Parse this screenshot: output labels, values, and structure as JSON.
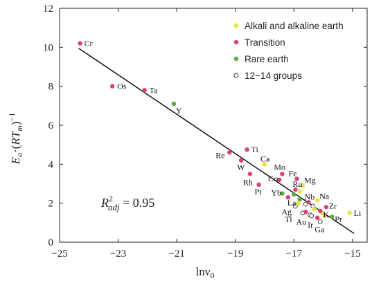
{
  "chart_data": {
    "type": "scatter",
    "xlim": [
      -25,
      -14.5
    ],
    "ylim": [
      0,
      12
    ],
    "x_ticks": [
      -25,
      -23,
      -21,
      -19,
      -17,
      -15
    ],
    "x_tick_labels": [
      "−25",
      "−23",
      "−21",
      "−19",
      "−17",
      "−15"
    ],
    "y_ticks": [
      0,
      2,
      4,
      6,
      8,
      10,
      12
    ],
    "y_tick_labels": [
      "0",
      "2",
      "4",
      "6",
      "8",
      "10",
      "12"
    ],
    "grid": false,
    "legend_position": "top-right",
    "annotation": {
      "prefix": "R",
      "sup": "2",
      "sub": "adj",
      "value": " = 0.95"
    },
    "categories": {
      "alkali": {
        "name": "Alkali and alkaline earth",
        "color": "#e8e03c"
      },
      "transition": {
        "name": "Transition",
        "color": "#d9407a"
      },
      "rare": {
        "name": "Rare earth",
        "color": "#5aa842"
      },
      "group12": {
        "name": "12−14 groups",
        "color": "#ffffff"
      }
    },
    "points": [
      {
        "label": "Cr",
        "x": -24.3,
        "y": 10.2,
        "cat": "transition"
      },
      {
        "label": "Os",
        "x": -23.2,
        "y": 8.0,
        "cat": "transition"
      },
      {
        "label": "Ta",
        "x": -22.1,
        "y": 7.8,
        "cat": "transition"
      },
      {
        "label": "Y",
        "x": -21.1,
        "y": 7.1,
        "cat": "rare"
      },
      {
        "label": "Ti",
        "x": -18.6,
        "y": 4.75,
        "cat": "transition"
      },
      {
        "label": "Re",
        "x": -19.2,
        "y": 4.6,
        "cat": "transition"
      },
      {
        "label": "W",
        "x": -18.8,
        "y": 4.2,
        "cat": "transition"
      },
      {
        "label": "Ca",
        "x": -18.0,
        "y": 4.0,
        "cat": "alkali"
      },
      {
        "label": "Mo",
        "x": -17.4,
        "y": 3.5,
        "cat": "transition"
      },
      {
        "label": "Rh",
        "x": -18.5,
        "y": 3.5,
        "cat": "transition"
      },
      {
        "label": "Co",
        "x": -17.5,
        "y": 3.2,
        "cat": "transition"
      },
      {
        "label": "Fe",
        "x": -16.9,
        "y": 3.25,
        "cat": "transition"
      },
      {
        "label": "Pt",
        "x": -18.2,
        "y": 2.95,
        "cat": "transition"
      },
      {
        "label": "Mg",
        "x": -16.7,
        "y": 2.9,
        "cat": "alkali"
      },
      {
        "label": "Yb",
        "x": -17.4,
        "y": 2.5,
        "cat": "rare"
      },
      {
        "label": "Ru",
        "x": -16.95,
        "y": 2.7,
        "cat": "transition"
      },
      {
        "label": "La",
        "x": -16.8,
        "y": 2.2,
        "cat": "rare"
      },
      {
        "label": "Nb",
        "x": -16.5,
        "y": 2.05,
        "cat": "transition"
      },
      {
        "label": "Na",
        "x": -16.2,
        "y": 2.15,
        "cat": "alkali"
      },
      {
        "label": "Ag",
        "x": -16.95,
        "y": 1.85,
        "cat": "group12"
      },
      {
        "label": "Zr",
        "x": -15.9,
        "y": 1.8,
        "cat": "transition"
      },
      {
        "label": "Tl",
        "x": -16.7,
        "y": 1.5,
        "cat": "group12"
      },
      {
        "label": "Li",
        "x": -15.1,
        "y": 1.5,
        "cat": "alkali"
      },
      {
        "label": "K",
        "x": -16.05,
        "y": 1.5,
        "cat": "alkali"
      },
      {
        "label": "Au",
        "x": -16.45,
        "y": 1.4,
        "cat": "group12"
      },
      {
        "label": "Pr",
        "x": -15.7,
        "y": 1.3,
        "cat": "rare"
      },
      {
        "label": "Ir",
        "x": -16.2,
        "y": 1.25,
        "cat": "transition"
      },
      {
        "label": "Ga",
        "x": -16.1,
        "y": 1.05,
        "cat": "group12"
      },
      {
        "x": -17.2,
        "y": 2.3,
        "cat": "transition"
      },
      {
        "x": -17.0,
        "y": 2.45,
        "cat": "rare"
      },
      {
        "x": -16.85,
        "y": 2.0,
        "cat": "alkali"
      },
      {
        "x": -16.6,
        "y": 1.95,
        "cat": "group12"
      },
      {
        "x": -16.35,
        "y": 1.85,
        "cat": "group12"
      },
      {
        "x": -16.3,
        "y": 1.7,
        "cat": "alkali"
      },
      {
        "x": -16.6,
        "y": 1.55,
        "cat": "transition"
      },
      {
        "x": -16.4,
        "y": 1.35,
        "cat": "group12"
      },
      {
        "x": -16.1,
        "y": 1.6,
        "cat": "transition"
      },
      {
        "x": -15.95,
        "y": 1.35,
        "cat": "alkali"
      },
      {
        "x": -16.8,
        "y": 2.6,
        "cat": "alkali"
      }
    ],
    "fit_line": {
      "x": [
        -24.35,
        -14.95
      ],
      "y": [
        9.95,
        0.45
      ]
    }
  }
}
